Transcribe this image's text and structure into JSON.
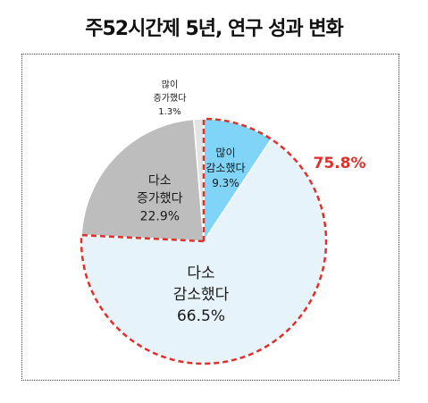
{
  "chart_data": {
    "type": "pie",
    "title": "주52시간제 5년, 연구 성과 변화",
    "slices": [
      {
        "label_lines": [
          "많이",
          "감소했다"
        ],
        "value": 9.3,
        "value_label": "9.3%",
        "color": "#7fd4f7"
      },
      {
        "label_lines": [
          "다소",
          "감소했다"
        ],
        "value": 66.5,
        "value_label": "66.5%",
        "color": "#e6f3fb"
      },
      {
        "label_lines": [
          "다소",
          "증가했다"
        ],
        "value": 22.9,
        "value_label": "22.9%",
        "color": "#bdbdbd"
      },
      {
        "label_lines": [
          "많이",
          "증가했다"
        ],
        "value": 1.3,
        "value_label": "1.3%",
        "color": "#e3e3e3"
      }
    ],
    "highlight": {
      "label": "75.8%",
      "color": "#e0302c",
      "covers": [
        "많이 감소했다",
        "다소 감소했다"
      ]
    }
  }
}
